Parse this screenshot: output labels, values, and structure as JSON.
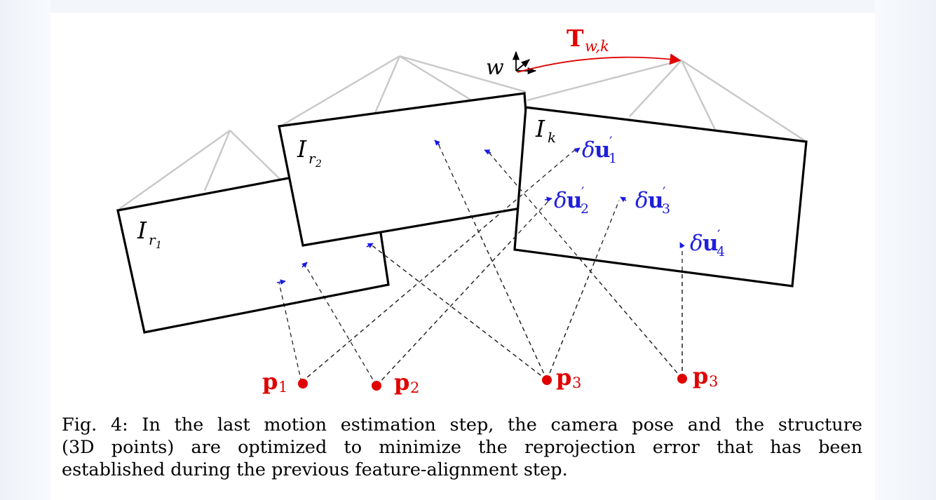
{
  "figure": {
    "frames": {
      "r1": "I",
      "r1_sub": "r",
      "r1_subsub": "1",
      "r2": "I",
      "r2_sub": "r",
      "r2_subsub": "2",
      "k": "I",
      "k_sub": "k"
    },
    "world_frame": {
      "label": "w",
      "transform": "T",
      "transform_sub": "w,k"
    },
    "residuals": [
      {
        "delta": "δ",
        "vec": "u",
        "prime": "′",
        "index": "1"
      },
      {
        "delta": "δ",
        "vec": "u",
        "prime": "′",
        "index": "2"
      },
      {
        "delta": "δ",
        "vec": "u",
        "prime": "′",
        "index": "3"
      },
      {
        "delta": "δ",
        "vec": "u",
        "prime": "′",
        "index": "4"
      }
    ],
    "points": [
      {
        "sym": "p",
        "index": "1"
      },
      {
        "sym": "p",
        "index": "2"
      },
      {
        "sym": "p",
        "index": "3"
      },
      {
        "sym": "p",
        "index": "3"
      }
    ],
    "colors": {
      "point": "#e00000",
      "residual": "#1f1fdc",
      "frame_outline": "#c8c8c8"
    }
  },
  "caption": {
    "lines": [
      "Fig. 4: In the last motion estimation step, the camera pose and the structure",
      "(3D points) are optimized to minimize the reprojection error that has been",
      "established during the previous feature-alignment step."
    ]
  }
}
